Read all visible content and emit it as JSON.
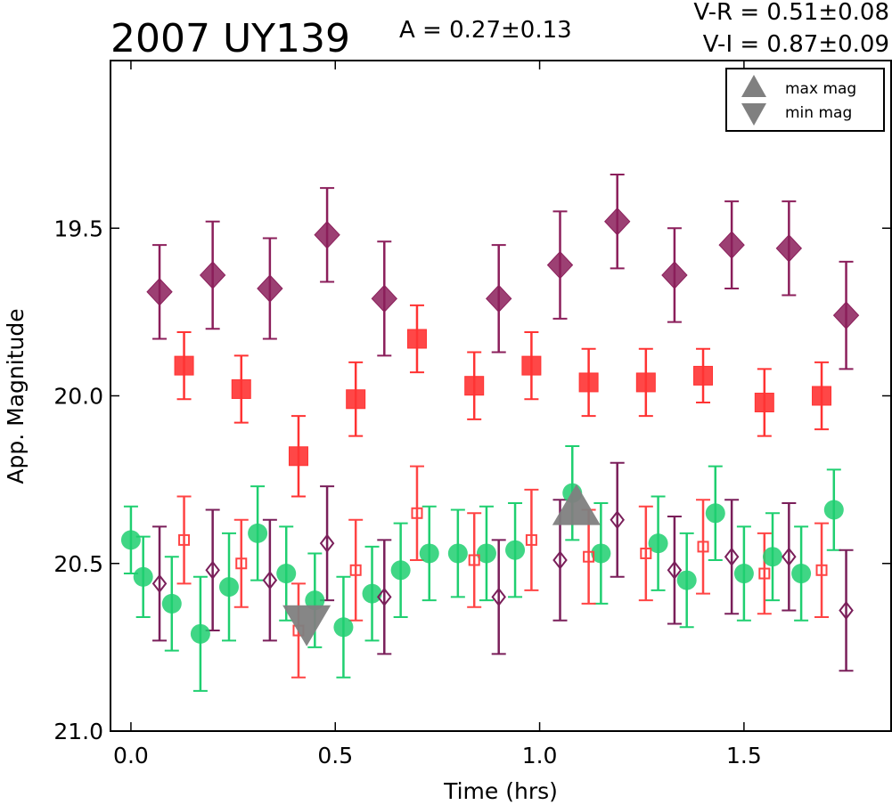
{
  "title": "2007 UY139",
  "stats": {
    "amplitude": "A  = 0.27±0.13",
    "v_r": "V-R = 0.51±0.08",
    "v_i": "V-I  = 0.87±0.09"
  },
  "chart_data": {
    "type": "scatter",
    "title": "2007 UY139",
    "xlabel": "Time (hrs)",
    "ylabel": "App. Magnitude",
    "xlim": [
      -0.05,
      1.86
    ],
    "ylim": [
      21.0,
      19.0
    ],
    "y_inverted": true,
    "grid": false,
    "legend_position": "top-right",
    "x_ticks": [
      0.0,
      0.5,
      1.0,
      1.5
    ],
    "x_tick_labels": [
      "0.0",
      "0.5",
      "1.0",
      "1.5"
    ],
    "y_ticks": [
      19.5,
      20.0,
      20.5,
      21.0
    ],
    "y_tick_labels": [
      "19.5",
      "20.0",
      "20.5",
      "21.0"
    ],
    "legend": [
      {
        "label": "max mag",
        "marker": "triangle-up"
      },
      {
        "label": "min mag",
        "marker": "triangle-down"
      }
    ],
    "series": [
      {
        "color": "#8b1f5b",
        "marker": "diamond-filled",
        "x": [
          0.07,
          0.2,
          0.34,
          0.48,
          0.62,
          0.9,
          1.05,
          1.19,
          1.33,
          1.47,
          1.61,
          1.75
        ],
        "y": [
          19.69,
          19.64,
          19.68,
          19.52,
          19.71,
          19.71,
          19.61,
          19.48,
          19.64,
          19.55,
          19.56,
          19.76
        ],
        "err": [
          0.14,
          0.16,
          0.15,
          0.14,
          0.17,
          0.16,
          0.16,
          0.14,
          0.14,
          0.13,
          0.14,
          0.16
        ]
      },
      {
        "color": "#ff3333",
        "marker": "square-filled",
        "x": [
          0.13,
          0.27,
          0.41,
          0.55,
          0.7,
          0.84,
          0.98,
          1.12,
          1.26,
          1.4,
          1.55,
          1.69
        ],
        "y": [
          19.91,
          19.98,
          20.18,
          20.01,
          19.83,
          19.97,
          19.91,
          19.96,
          19.96,
          19.94,
          20.02,
          20.0
        ],
        "err": [
          0.1,
          0.1,
          0.12,
          0.11,
          0.1,
          0.1,
          0.1,
          0.1,
          0.1,
          0.08,
          0.1,
          0.1
        ]
      },
      {
        "color": "#1fcf70",
        "marker": "circle-filled",
        "x": [
          0.0,
          0.03,
          0.1,
          0.17,
          0.24,
          0.31,
          0.38,
          0.45,
          0.52,
          0.59,
          0.66,
          0.73,
          0.8,
          0.87,
          0.94,
          1.08,
          1.15,
          1.29,
          1.36,
          1.43,
          1.5,
          1.57,
          1.64,
          1.72
        ],
        "y": [
          20.43,
          20.54,
          20.62,
          20.71,
          20.57,
          20.41,
          20.53,
          20.61,
          20.69,
          20.59,
          20.52,
          20.47,
          20.47,
          20.47,
          20.46,
          20.29,
          20.47,
          20.44,
          20.55,
          20.35,
          20.53,
          20.48,
          20.53,
          20.34
        ],
        "err": [
          0.1,
          0.12,
          0.14,
          0.17,
          0.16,
          0.14,
          0.14,
          0.14,
          0.15,
          0.14,
          0.14,
          0.14,
          0.13,
          0.14,
          0.14,
          0.14,
          0.15,
          0.14,
          0.14,
          0.14,
          0.14,
          0.13,
          0.14,
          0.12
        ]
      },
      {
        "color": "#ff4444",
        "marker": "square-open",
        "x": [
          0.13,
          0.27,
          0.41,
          0.55,
          0.7,
          0.84,
          0.98,
          1.12,
          1.26,
          1.4,
          1.55,
          1.69
        ],
        "y": [
          20.43,
          20.5,
          20.7,
          20.52,
          20.35,
          20.49,
          20.43,
          20.48,
          20.47,
          20.45,
          20.53,
          20.52
        ],
        "err": [
          0.13,
          0.13,
          0.14,
          0.15,
          0.14,
          0.14,
          0.15,
          0.14,
          0.14,
          0.14,
          0.12,
          0.14
        ]
      },
      {
        "color": "#7a1f5a",
        "marker": "diamond-open",
        "x": [
          0.07,
          0.2,
          0.34,
          0.48,
          0.62,
          0.9,
          1.05,
          1.19,
          1.33,
          1.47,
          1.61,
          1.75
        ],
        "y": [
          20.56,
          20.52,
          20.55,
          20.44,
          20.6,
          20.6,
          20.49,
          20.37,
          20.52,
          20.48,
          20.48,
          20.64
        ],
        "err": [
          0.17,
          0.18,
          0.18,
          0.17,
          0.17,
          0.17,
          0.18,
          0.17,
          0.16,
          0.17,
          0.16,
          0.18
        ]
      }
    ],
    "extrema": [
      {
        "type": "max",
        "x": 1.09,
        "y": 20.38,
        "marker": "triangle-up",
        "color": "#808080"
      },
      {
        "type": "min",
        "x": 0.43,
        "y": 20.63,
        "marker": "triangle-down",
        "color": "#808080"
      }
    ]
  }
}
